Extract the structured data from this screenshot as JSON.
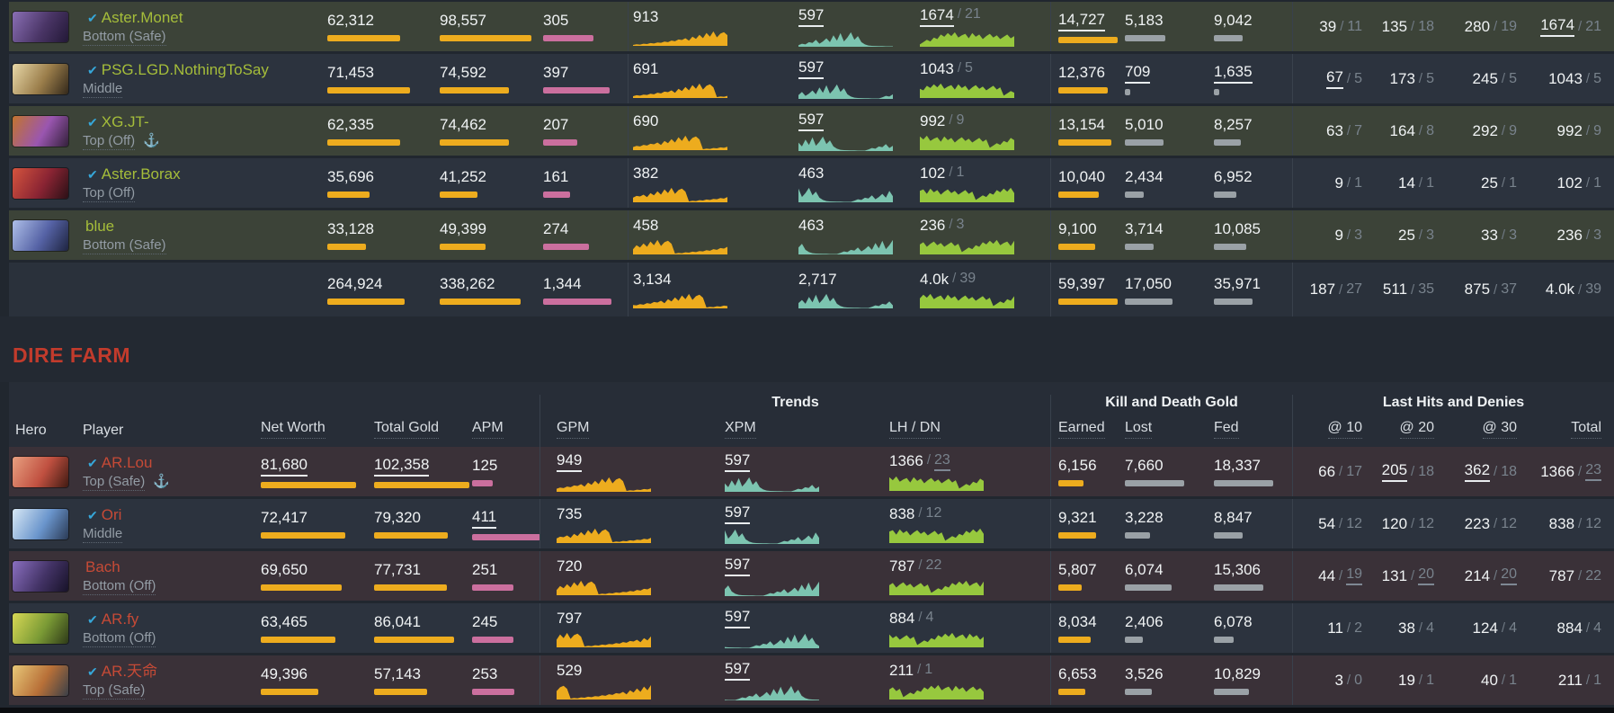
{
  "band": {
    "title": "DIRE FARM"
  },
  "colors": {
    "page_bg": "#21272f",
    "row_dark": "#2c333e",
    "row_radiant": "#3c4338",
    "row_dire": "#3a3138",
    "totals_bg": "#2a313b",
    "band_bg": "#232932",
    "thead_bg": "#272d37",
    "strip": "#0b0d10",
    "divider": "#39414c",
    "text": "#f0f3f4",
    "text_sub": "#79838d",
    "role": "#939ca5",
    "radiant_name": "#a5bd3a",
    "dire_name": "#c64a36",
    "check": "#36a7d9",
    "anchor": "#8b949c",
    "header_text": "#d9dee3",
    "title_red": "#c23b2c",
    "bar_orange": "#edac1e",
    "bar_pink": "#cb6f9e",
    "bar_gray": "#9aa1a6",
    "spark_orange": "#edac1e",
    "spark_teal": "#7cc4b0",
    "spark_green": "#97c83e"
  },
  "bar_max": {
    "net_worth": 106,
    "total_gold": 106,
    "apm": 76,
    "earned": 66,
    "lost": 66,
    "fed": 66
  },
  "sparklines": {
    "gpm": [
      0.06,
      0.1,
      0.08,
      0.14,
      0.12,
      0.18,
      0.15,
      0.22,
      0.2,
      0.28,
      0.24,
      0.35,
      0.3,
      0.42,
      0.38,
      0.5,
      0.34,
      0.6,
      0.45,
      0.72,
      0.5,
      0.85,
      0.6,
      0.95,
      0.55,
      0.8,
      0.9,
      0.7
    ],
    "xpm": [
      0.1,
      0.2,
      0.15,
      0.3,
      0.25,
      0.45,
      0.2,
      0.35,
      0.55,
      0.3,
      0.75,
      0.4,
      0.9,
      0.35,
      0.6,
      0.95,
      0.45,
      0.7,
      0.3,
      0.15,
      0.08,
      0.06,
      0.05,
      0.04,
      0.04,
      0.03,
      0.03,
      0.03
    ],
    "lh": [
      0.15,
      0.3,
      0.45,
      0.35,
      0.6,
      0.5,
      0.8,
      0.65,
      0.9,
      0.7,
      0.95,
      0.6,
      0.75,
      0.85,
      0.55,
      0.9,
      0.65,
      0.8,
      0.5,
      0.7,
      0.85,
      0.6,
      0.75,
      0.5,
      0.65,
      0.8,
      0.55,
      0.7
    ]
  },
  "dire": {
    "groups": {
      "trends": "Trends",
      "kdg": "Kill and Death Gold",
      "lhd": "Last Hits and Denies"
    },
    "headers": [
      "Hero",
      "Player",
      "Net Worth",
      "Total Gold",
      "APM",
      "GPM",
      "XPM",
      "LH / DN",
      "Earned",
      "Lost",
      "Fed",
      "@ 10",
      "@ 20",
      "@ 30",
      "Total"
    ],
    "rows": [
      {
        "name": "AR.Lou",
        "verified": true,
        "anchor": true,
        "role": "Top (Safe)",
        "hero_colors": [
          "#e8a080",
          "#c05040",
          "#401a12"
        ],
        "net_worth": {
          "v": "81,680",
          "pct": 100,
          "u": true
        },
        "total_gold": {
          "v": "102,358",
          "pct": 100,
          "u": true
        },
        "apm": {
          "v": "125",
          "pct": 30
        },
        "gpm": {
          "v": "949",
          "u": true
        },
        "xpm": {
          "v": "597",
          "u": true
        },
        "lh": {
          "v": "1366",
          "sub": "23",
          "sub_u": true
        },
        "earned": {
          "v": "6,156",
          "pct": 42
        },
        "lost": {
          "v": "7,660",
          "pct": 100
        },
        "fed": {
          "v": "18,337",
          "pct": 100
        },
        "at10": {
          "v": "66",
          "sub": "17"
        },
        "at20": {
          "v": "205",
          "sub": "18",
          "u": true
        },
        "at30": {
          "v": "362",
          "sub": "18",
          "u": true
        },
        "total": {
          "v": "1366",
          "sub": "23",
          "sub_u": true
        }
      },
      {
        "name": "Ori",
        "verified": true,
        "anchor": false,
        "role": "Middle",
        "hero_colors": [
          "#d8e8f5",
          "#6a95cc",
          "#2a3a55"
        ],
        "net_worth": {
          "v": "72,417",
          "pct": 89
        },
        "total_gold": {
          "v": "79,320",
          "pct": 77
        },
        "apm": {
          "v": "411",
          "pct": 100,
          "u": true
        },
        "gpm": {
          "v": "735"
        },
        "xpm": {
          "v": "597",
          "u": true
        },
        "lh": {
          "v": "838",
          "sub": "12"
        },
        "earned": {
          "v": "9,321",
          "pct": 63
        },
        "lost": {
          "v": "3,228",
          "pct": 42
        },
        "fed": {
          "v": "8,847",
          "pct": 48
        },
        "at10": {
          "v": "54",
          "sub": "12"
        },
        "at20": {
          "v": "120",
          "sub": "12"
        },
        "at30": {
          "v": "223",
          "sub": "12"
        },
        "total": {
          "v": "838",
          "sub": "12"
        }
      },
      {
        "name": "Bach",
        "verified": false,
        "anchor": false,
        "role": "Bottom (Off)",
        "hero_colors": [
          "#8a6fc0",
          "#433366",
          "#171228"
        ],
        "net_worth": {
          "v": "69,650",
          "pct": 85
        },
        "total_gold": {
          "v": "77,731",
          "pct": 76
        },
        "apm": {
          "v": "251",
          "pct": 61
        },
        "gpm": {
          "v": "720"
        },
        "xpm": {
          "v": "597",
          "u": true
        },
        "lh": {
          "v": "787",
          "sub": "22"
        },
        "earned": {
          "v": "5,807",
          "pct": 39
        },
        "lost": {
          "v": "6,074",
          "pct": 79
        },
        "fed": {
          "v": "15,306",
          "pct": 83
        },
        "at10": {
          "v": "44",
          "sub": "19",
          "sub_u": true
        },
        "at20": {
          "v": "131",
          "sub": "20",
          "sub_u": true
        },
        "at30": {
          "v": "214",
          "sub": "20",
          "sub_u": true
        },
        "total": {
          "v": "787",
          "sub": "22"
        }
      },
      {
        "name": "AR.fy",
        "verified": true,
        "anchor": false,
        "role": "Bottom (Off)",
        "hero_colors": [
          "#d8d855",
          "#7a9a35",
          "#2e3a18"
        ],
        "net_worth": {
          "v": "63,465",
          "pct": 78
        },
        "total_gold": {
          "v": "86,041",
          "pct": 84
        },
        "apm": {
          "v": "245",
          "pct": 60
        },
        "gpm": {
          "v": "797"
        },
        "xpm": {
          "v": "597",
          "u": true
        },
        "lh": {
          "v": "884",
          "sub": "4"
        },
        "earned": {
          "v": "8,034",
          "pct": 55
        },
        "lost": {
          "v": "2,406",
          "pct": 31
        },
        "fed": {
          "v": "6,078",
          "pct": 33
        },
        "at10": {
          "v": "11",
          "sub": "2"
        },
        "at20": {
          "v": "38",
          "sub": "4"
        },
        "at30": {
          "v": "124",
          "sub": "4"
        },
        "total": {
          "v": "884",
          "sub": "4"
        }
      },
      {
        "name": "AR.天命",
        "verified": true,
        "anchor": false,
        "role": "Top (Safe)",
        "hero_colors": [
          "#e8c878",
          "#b87038",
          "#3a3f48"
        ],
        "net_worth": {
          "v": "49,396",
          "pct": 60
        },
        "total_gold": {
          "v": "57,143",
          "pct": 56
        },
        "apm": {
          "v": "253",
          "pct": 62
        },
        "gpm": {
          "v": "529"
        },
        "xpm": {
          "v": "597",
          "u": true
        },
        "lh": {
          "v": "211",
          "sub": "1"
        },
        "earned": {
          "v": "6,653",
          "pct": 45
        },
        "lost": {
          "v": "3,526",
          "pct": 46
        },
        "fed": {
          "v": "10,829",
          "pct": 59
        },
        "at10": {
          "v": "3",
          "sub": "0"
        },
        "at20": {
          "v": "19",
          "sub": "1"
        },
        "at30": {
          "v": "40",
          "sub": "1"
        },
        "total": {
          "v": "211",
          "sub": "1"
        }
      }
    ]
  },
  "radiant": {
    "rows": [
      {
        "name": "Aster.Monet",
        "verified": true,
        "anchor": false,
        "role": "Bottom (Safe)",
        "hero_colors": [
          "#8a6fb5",
          "#4a3566",
          "#221836"
        ],
        "net_worth": {
          "v": "62,312",
          "pct": 76
        },
        "total_gold": {
          "v": "98,557",
          "pct": 96
        },
        "apm": {
          "v": "305",
          "pct": 74
        },
        "gpm": {
          "v": "913"
        },
        "xpm": {
          "v": "597",
          "u": true
        },
        "lh": {
          "v": "1674",
          "sub": "21",
          "u": true
        },
        "earned": {
          "v": "14,727",
          "pct": 100,
          "u": true
        },
        "lost": {
          "v": "5,183",
          "pct": 68
        },
        "fed": {
          "v": "9,042",
          "pct": 49
        },
        "at10": {
          "v": "39",
          "sub": "11"
        },
        "at20": {
          "v": "135",
          "sub": "18"
        },
        "at30": {
          "v": "280",
          "sub": "19"
        },
        "total": {
          "v": "1674",
          "sub": "21",
          "u": true
        }
      },
      {
        "name": "PSG.LGD.NothingToSay",
        "verified": true,
        "anchor": false,
        "role": "Middle",
        "hero_colors": [
          "#e8d8a8",
          "#9a7d4a",
          "#33281a"
        ],
        "net_worth": {
          "v": "71,453",
          "pct": 87
        },
        "total_gold": {
          "v": "74,592",
          "pct": 73
        },
        "apm": {
          "v": "397",
          "pct": 97
        },
        "gpm": {
          "v": "691"
        },
        "xpm": {
          "v": "597",
          "u": true
        },
        "lh": {
          "v": "1043",
          "sub": "5"
        },
        "earned": {
          "v": "12,376",
          "pct": 84
        },
        "lost": {
          "v": "709",
          "pct": 9,
          "u": true
        },
        "fed": {
          "v": "1,635",
          "pct": 9,
          "u": true
        },
        "at10": {
          "v": "67",
          "sub": "5",
          "u": true
        },
        "at20": {
          "v": "173",
          "sub": "5"
        },
        "at30": {
          "v": "245",
          "sub": "5"
        },
        "total": {
          "v": "1043",
          "sub": "5"
        }
      },
      {
        "name": "XG.JT-",
        "verified": true,
        "anchor": true,
        "role": "Top (Off)",
        "hero_colors": [
          "#c2742e",
          "#9a56b0",
          "#33203a"
        ],
        "net_worth": {
          "v": "62,335",
          "pct": 76
        },
        "total_gold": {
          "v": "74,462",
          "pct": 73
        },
        "apm": {
          "v": "207",
          "pct": 50
        },
        "gpm": {
          "v": "690"
        },
        "xpm": {
          "v": "597",
          "u": true
        },
        "lh": {
          "v": "992",
          "sub": "9"
        },
        "earned": {
          "v": "13,154",
          "pct": 89
        },
        "lost": {
          "v": "5,010",
          "pct": 65
        },
        "fed": {
          "v": "8,257",
          "pct": 45
        },
        "at10": {
          "v": "63",
          "sub": "7"
        },
        "at20": {
          "v": "164",
          "sub": "8"
        },
        "at30": {
          "v": "292",
          "sub": "9"
        },
        "total": {
          "v": "992",
          "sub": "9"
        }
      },
      {
        "name": "Aster.Borax",
        "verified": true,
        "anchor": false,
        "role": "Top (Off)",
        "hero_colors": [
          "#d4543e",
          "#8a2433",
          "#2a1016"
        ],
        "net_worth": {
          "v": "35,696",
          "pct": 44
        },
        "total_gold": {
          "v": "41,252",
          "pct": 40
        },
        "apm": {
          "v": "161",
          "pct": 39
        },
        "gpm": {
          "v": "382"
        },
        "xpm": {
          "v": "463"
        },
        "lh": {
          "v": "102",
          "sub": "1"
        },
        "earned": {
          "v": "10,040",
          "pct": 68
        },
        "lost": {
          "v": "2,434",
          "pct": 32
        },
        "fed": {
          "v": "6,952",
          "pct": 38
        },
        "at10": {
          "v": "9",
          "sub": "1"
        },
        "at20": {
          "v": "14",
          "sub": "1"
        },
        "at30": {
          "v": "25",
          "sub": "1"
        },
        "total": {
          "v": "102",
          "sub": "1"
        }
      },
      {
        "name": "blue",
        "verified": false,
        "anchor": false,
        "role": "Bottom (Safe)",
        "hero_colors": [
          "#aebfe8",
          "#5562a5",
          "#1e2440"
        ],
        "net_worth": {
          "v": "33,128",
          "pct": 41
        },
        "total_gold": {
          "v": "49,399",
          "pct": 48
        },
        "apm": {
          "v": "274",
          "pct": 67
        },
        "gpm": {
          "v": "458"
        },
        "xpm": {
          "v": "463"
        },
        "lh": {
          "v": "236",
          "sub": "3"
        },
        "earned": {
          "v": "9,100",
          "pct": 62
        },
        "lost": {
          "v": "3,714",
          "pct": 48
        },
        "fed": {
          "v": "10,085",
          "pct": 55
        },
        "at10": {
          "v": "9",
          "sub": "3"
        },
        "at20": {
          "v": "25",
          "sub": "3"
        },
        "at30": {
          "v": "33",
          "sub": "3"
        },
        "total": {
          "v": "236",
          "sub": "3"
        }
      }
    ],
    "totals": {
      "net_worth": {
        "v": "264,924",
        "pct": 81
      },
      "total_gold": {
        "v": "338,262",
        "pct": 85
      },
      "apm": {
        "v": "1,344",
        "pct": 100
      },
      "gpm": {
        "v": "3,134"
      },
      "xpm": {
        "v": "2,717"
      },
      "lh": {
        "v": "4.0k",
        "sub": "39"
      },
      "earned": {
        "v": "59,397",
        "pct": 100
      },
      "lost": {
        "v": "17,050",
        "pct": 80
      },
      "fed": {
        "v": "35,971",
        "pct": 65
      },
      "at10": {
        "v": "187",
        "sub": "27"
      },
      "at20": {
        "v": "511",
        "sub": "35"
      },
      "at30": {
        "v": "875",
        "sub": "37"
      },
      "total": {
        "v": "4.0k",
        "sub": "39"
      }
    }
  }
}
